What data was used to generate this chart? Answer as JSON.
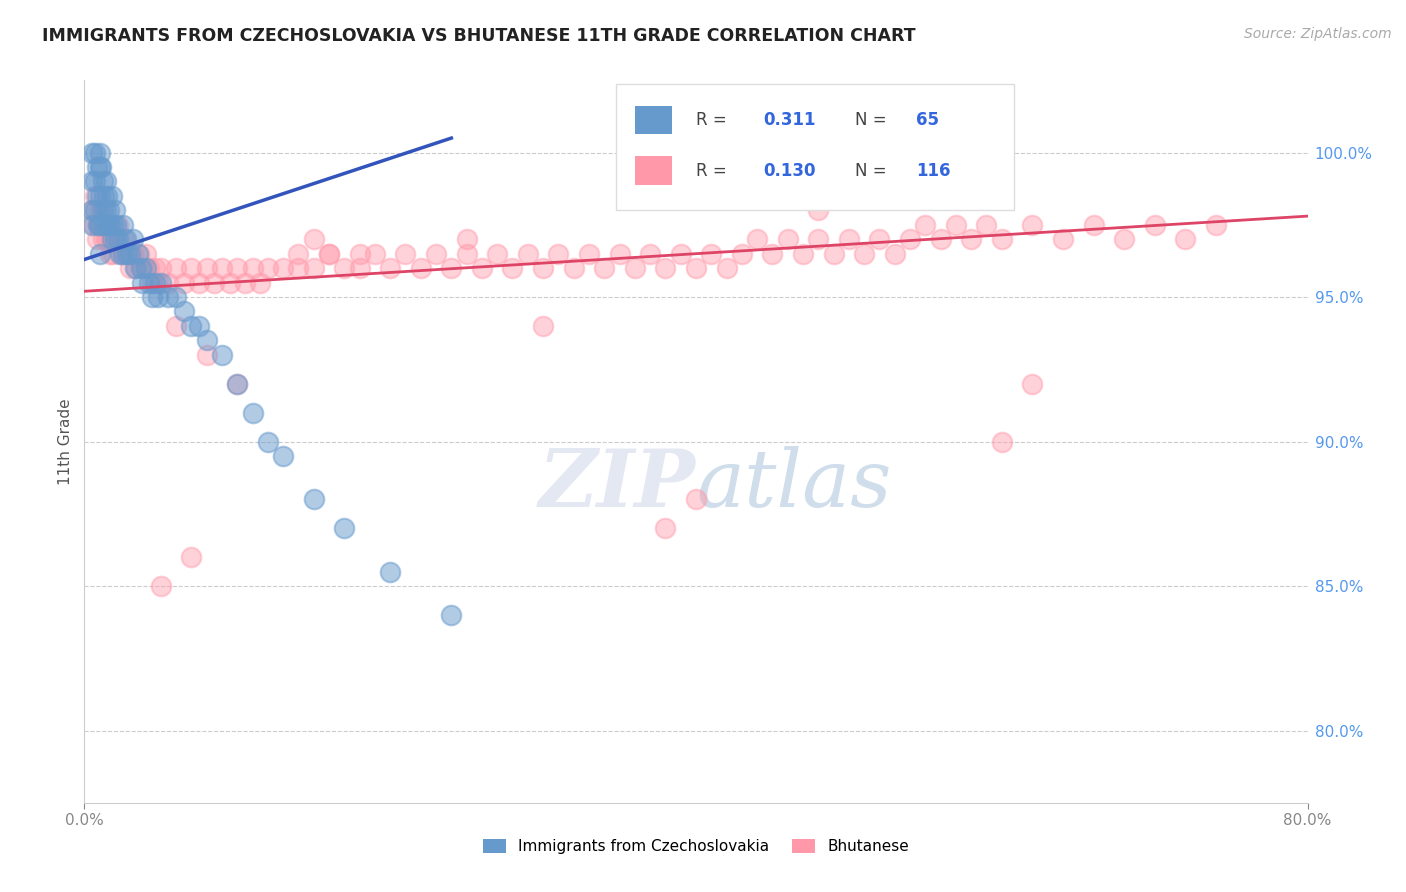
{
  "title": "IMMIGRANTS FROM CZECHOSLOVAKIA VS BHUTANESE 11TH GRADE CORRELATION CHART",
  "source": "Source: ZipAtlas.com",
  "ylabel": "11th Grade",
  "y_ticks": [
    "80.0%",
    "85.0%",
    "90.0%",
    "95.0%",
    "100.0%"
  ],
  "y_tick_vals": [
    0.8,
    0.85,
    0.9,
    0.95,
    1.0
  ],
  "x_range": [
    0.0,
    0.8
  ],
  "y_range": [
    0.775,
    1.025
  ],
  "r_czech": 0.311,
  "n_czech": 65,
  "r_bhutan": 0.13,
  "n_bhutan": 116,
  "legend_label_czech": "Immigrants from Czechoslovakia",
  "legend_label_bhutan": "Bhutanese",
  "color_czech": "#6699CC",
  "color_bhutan": "#FF99AA",
  "background_color": "#FFFFFF",
  "czech_x": [
    0.005,
    0.005,
    0.005,
    0.005,
    0.007,
    0.007,
    0.007,
    0.008,
    0.008,
    0.009,
    0.01,
    0.01,
    0.01,
    0.01,
    0.01,
    0.011,
    0.012,
    0.012,
    0.013,
    0.013,
    0.014,
    0.014,
    0.015,
    0.015,
    0.016,
    0.017,
    0.018,
    0.018,
    0.019,
    0.02,
    0.02,
    0.021,
    0.022,
    0.023,
    0.025,
    0.025,
    0.027,
    0.028,
    0.03,
    0.032,
    0.033,
    0.035,
    0.037,
    0.038,
    0.04,
    0.042,
    0.044,
    0.046,
    0.048,
    0.05,
    0.055,
    0.06,
    0.065,
    0.07,
    0.075,
    0.08,
    0.09,
    0.1,
    0.11,
    0.12,
    0.13,
    0.15,
    0.17,
    0.2,
    0.24
  ],
  "czech_y": [
    1.0,
    0.99,
    0.98,
    0.975,
    1.0,
    0.99,
    0.98,
    0.995,
    0.985,
    0.975,
    1.0,
    0.995,
    0.985,
    0.975,
    0.965,
    0.995,
    0.99,
    0.98,
    0.985,
    0.975,
    0.99,
    0.98,
    0.985,
    0.975,
    0.98,
    0.975,
    0.985,
    0.97,
    0.975,
    0.98,
    0.97,
    0.975,
    0.97,
    0.965,
    0.975,
    0.965,
    0.97,
    0.965,
    0.965,
    0.97,
    0.96,
    0.965,
    0.96,
    0.955,
    0.96,
    0.955,
    0.95,
    0.955,
    0.95,
    0.955,
    0.95,
    0.95,
    0.945,
    0.94,
    0.94,
    0.935,
    0.93,
    0.92,
    0.91,
    0.9,
    0.895,
    0.88,
    0.87,
    0.855,
    0.84
  ],
  "bhutan_x": [
    0.005,
    0.006,
    0.007,
    0.008,
    0.009,
    0.01,
    0.011,
    0.012,
    0.013,
    0.014,
    0.015,
    0.016,
    0.017,
    0.018,
    0.019,
    0.02,
    0.022,
    0.024,
    0.026,
    0.028,
    0.03,
    0.032,
    0.034,
    0.036,
    0.038,
    0.04,
    0.042,
    0.044,
    0.046,
    0.048,
    0.05,
    0.055,
    0.06,
    0.065,
    0.07,
    0.075,
    0.08,
    0.085,
    0.09,
    0.095,
    0.1,
    0.105,
    0.11,
    0.115,
    0.12,
    0.13,
    0.14,
    0.15,
    0.16,
    0.17,
    0.18,
    0.19,
    0.2,
    0.21,
    0.22,
    0.23,
    0.24,
    0.25,
    0.26,
    0.27,
    0.28,
    0.29,
    0.3,
    0.31,
    0.32,
    0.33,
    0.34,
    0.35,
    0.36,
    0.37,
    0.38,
    0.39,
    0.4,
    0.41,
    0.42,
    0.43,
    0.44,
    0.45,
    0.46,
    0.47,
    0.48,
    0.49,
    0.5,
    0.51,
    0.52,
    0.53,
    0.54,
    0.55,
    0.56,
    0.57,
    0.58,
    0.59,
    0.6,
    0.62,
    0.64,
    0.66,
    0.68,
    0.7,
    0.72,
    0.74,
    0.6,
    0.62,
    0.06,
    0.08,
    0.1,
    0.3,
    0.05,
    0.07,
    0.38,
    0.4,
    0.15,
    0.18,
    0.25,
    0.16,
    0.14,
    0.48
  ],
  "bhutan_y": [
    0.98,
    0.975,
    0.985,
    0.97,
    0.975,
    0.98,
    0.975,
    0.97,
    0.975,
    0.97,
    0.975,
    0.97,
    0.965,
    0.97,
    0.965,
    0.97,
    0.975,
    0.965,
    0.97,
    0.965,
    0.96,
    0.965,
    0.96,
    0.965,
    0.96,
    0.965,
    0.96,
    0.955,
    0.96,
    0.955,
    0.96,
    0.955,
    0.96,
    0.955,
    0.96,
    0.955,
    0.96,
    0.955,
    0.96,
    0.955,
    0.96,
    0.955,
    0.96,
    0.955,
    0.96,
    0.96,
    0.965,
    0.96,
    0.965,
    0.96,
    0.96,
    0.965,
    0.96,
    0.965,
    0.96,
    0.965,
    0.96,
    0.965,
    0.96,
    0.965,
    0.96,
    0.965,
    0.96,
    0.965,
    0.96,
    0.965,
    0.96,
    0.965,
    0.96,
    0.965,
    0.96,
    0.965,
    0.96,
    0.965,
    0.96,
    0.965,
    0.97,
    0.965,
    0.97,
    0.965,
    0.97,
    0.965,
    0.97,
    0.965,
    0.97,
    0.965,
    0.97,
    0.975,
    0.97,
    0.975,
    0.97,
    0.975,
    0.97,
    0.975,
    0.97,
    0.975,
    0.97,
    0.975,
    0.97,
    0.975,
    0.9,
    0.92,
    0.94,
    0.93,
    0.92,
    0.94,
    0.85,
    0.86,
    0.87,
    0.88,
    0.97,
    0.965,
    0.97,
    0.965,
    0.96,
    0.98
  ]
}
